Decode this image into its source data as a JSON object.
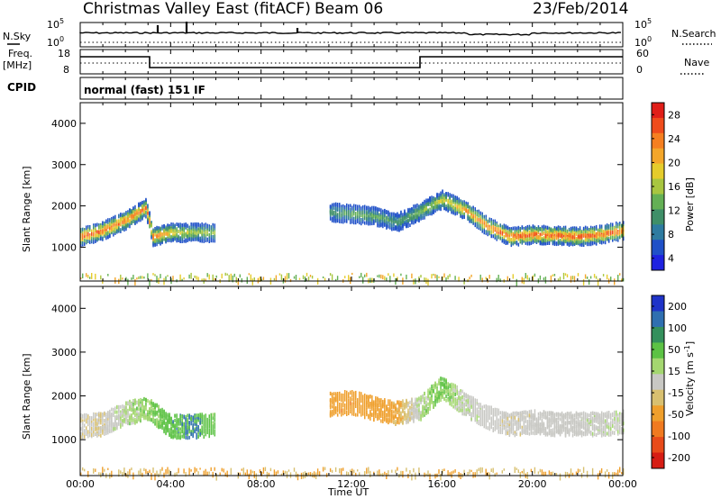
{
  "header": {
    "title": "Christmas Valley East (fitACF)",
    "beam": "Beam 06",
    "date": "23/Feb/2014"
  },
  "panels": {
    "nsky_label": "N.Sky",
    "nsky_ticks": [
      "10^5",
      "10^0"
    ],
    "nsearch_label": "N.Search",
    "nsearch_ticks": [
      "10^5",
      "10^0"
    ],
    "freq_label_1": "Freq.",
    "freq_label_2": "[MHz]",
    "freq_ticks": [
      "18",
      "8"
    ],
    "nave_label": "Nave",
    "nave_ticks": [
      "60",
      "0"
    ],
    "cpid_label": "CPID",
    "cpid_text": "normal (fast) 151 IF"
  },
  "axes": {
    "xlabel": "Time UT",
    "xticks": [
      "00:00",
      "04:00",
      "08:00",
      "12:00",
      "16:00",
      "20:00",
      "00:00"
    ],
    "ylabel": "Slant Range [km]",
    "yticks": [
      "1000",
      "2000",
      "3000",
      "4000"
    ]
  },
  "colorbars": {
    "power_label": "Power [dB]",
    "power_ticks": [
      "28",
      "24",
      "20",
      "16",
      "12",
      "8",
      "4"
    ],
    "power_colors": [
      "#1e22e0",
      "#1f50c8",
      "#2e7ba0",
      "#3f8f68",
      "#64b055",
      "#a8c640",
      "#e5cc2c",
      "#f3a62a",
      "#f57f20",
      "#ef4c1c",
      "#e01e18"
    ],
    "velocity_label": "Velocity [m s^-1]",
    "velocity_ticks": [
      "200",
      "100",
      "50",
      "15",
      "-15",
      "-50",
      "-100",
      "-200"
    ],
    "velocity_colors": [
      "#1f33c8",
      "#2f6fb0",
      "#34905c",
      "#5cc244",
      "#a4d770",
      "#c8c8c4",
      "#d8c070",
      "#ef9f2c",
      "#f07a20",
      "#e84b1a",
      "#d61d14"
    ]
  },
  "chart_data": [
    {
      "type": "heatmap",
      "title": "Power [dB]",
      "xlabel": "Time UT",
      "ylabel": "Slant Range [km]",
      "xlim": [
        0,
        24
      ],
      "ylim": [
        180,
        4500
      ],
      "zlim": [
        0,
        30
      ],
      "x": [
        0,
        1,
        2,
        2.9,
        3.2,
        4,
        5,
        6,
        7,
        8,
        9,
        10,
        11,
        12,
        13,
        14,
        15,
        16,
        17,
        18,
        19,
        20,
        21,
        22,
        23,
        24
      ],
      "echo_center_km": [
        1250,
        1400,
        1650,
        1950,
        1250,
        1350,
        1350,
        1350,
        null,
        null,
        null,
        null,
        1850,
        1800,
        1750,
        1600,
        1850,
        2150,
        1900,
        1500,
        1250,
        1300,
        1280,
        1250,
        1300,
        1400
      ],
      "echo_peak_power_db": [
        28,
        28,
        26,
        26,
        27,
        20,
        16,
        14,
        null,
        null,
        null,
        null,
        10,
        12,
        12,
        10,
        14,
        18,
        24,
        26,
        28,
        28,
        28,
        28,
        27,
        26
      ],
      "notes_km": "ground-scatter band near 200 km throughout; sparse scatter 2000–4000 km"
    },
    {
      "type": "heatmap",
      "title": "Velocity [m s^-1]",
      "xlabel": "Time UT",
      "ylabel": "Slant Range [km]",
      "xlim": [
        0,
        24
      ],
      "ylim": [
        180,
        4500
      ],
      "zlim": [
        -200,
        200
      ],
      "x": [
        0,
        1,
        2,
        3,
        4,
        5,
        6,
        7,
        8,
        9,
        10,
        11,
        12,
        13,
        14,
        15,
        16,
        17,
        18,
        19,
        20,
        21,
        22,
        23,
        24
      ],
      "echo_center_km": [
        1300,
        1350,
        1600,
        1700,
        1300,
        1300,
        1350,
        null,
        null,
        null,
        null,
        1800,
        1850,
        1700,
        1600,
        1700,
        2200,
        1800,
        1500,
        1350,
        1400,
        1350,
        1350,
        1350,
        1400
      ],
      "velocity_ms": [
        -10,
        -10,
        20,
        30,
        60,
        80,
        40,
        null,
        null,
        null,
        null,
        -80,
        -90,
        -70,
        -60,
        20,
        40,
        10,
        0,
        -5,
        0,
        0,
        0,
        5,
        5
      ]
    }
  ]
}
